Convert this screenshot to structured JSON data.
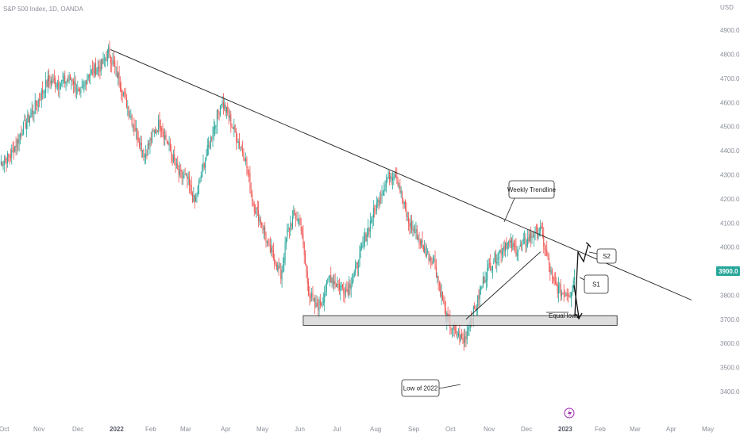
{
  "header": {
    "symbol": "S&P 500 Index, 1D, OANDA",
    "currency": "USD"
  },
  "current_price_label": "3900.0",
  "colors": {
    "up": "#26a69a",
    "down": "#ef5350",
    "price_badge": "#26a69a",
    "support_fill": "#d4d4d4",
    "line": "#1a1a1a",
    "axis_text": "#8a8e99",
    "icon": "#9c27b0"
  },
  "chart_data": {
    "type": "candlestick",
    "title": "S&P 500 Index, 1D, OANDA",
    "x_ticks": [
      "Oct",
      "Nov",
      "Dec",
      "2022",
      "Feb",
      "Mar",
      "Apr",
      "May",
      "Jun",
      "Jul",
      "Aug",
      "Sep",
      "Oct",
      "Nov",
      "Dec",
      "2023",
      "Feb",
      "Mar",
      "Apr",
      "May"
    ],
    "y_ticks": [
      "4900.0",
      "4800.0",
      "4700.0",
      "4600.0",
      "4500.0",
      "4400.0",
      "4300.0",
      "4200.0",
      "4100.0",
      "4000.0",
      "3800.0",
      "3700.0",
      "3600.0",
      "3500.0",
      "3400.0"
    ],
    "ylim": [
      3380,
      4960
    ],
    "ylabel": "USD",
    "price_keypoints": [
      [
        0,
        4350
      ],
      [
        10,
        4380
      ],
      [
        20,
        4480
      ],
      [
        35,
        4600
      ],
      [
        45,
        4690
      ],
      [
        55,
        4680
      ],
      [
        68,
        4700
      ],
      [
        75,
        4620
      ],
      [
        83,
        4720
      ],
      [
        95,
        4750
      ],
      [
        102,
        4810
      ],
      [
        110,
        4720
      ],
      [
        120,
        4580
      ],
      [
        128,
        4480
      ],
      [
        136,
        4380
      ],
      [
        142,
        4450
      ],
      [
        150,
        4520
      ],
      [
        160,
        4400
      ],
      [
        168,
        4300
      ],
      [
        176,
        4280
      ],
      [
        183,
        4180
      ],
      [
        190,
        4320
      ],
      [
        200,
        4480
      ],
      [
        208,
        4610
      ],
      [
        215,
        4540
      ],
      [
        222,
        4460
      ],
      [
        230,
        4380
      ],
      [
        238,
        4180
      ],
      [
        246,
        4100
      ],
      [
        252,
        4000
      ],
      [
        258,
        3950
      ],
      [
        264,
        3880
      ],
      [
        270,
        4060
      ],
      [
        276,
        4130
      ],
      [
        282,
        4110
      ],
      [
        290,
        3820
      ],
      [
        296,
        3750
      ],
      [
        302,
        3770
      ],
      [
        310,
        3880
      ],
      [
        318,
        3840
      ],
      [
        326,
        3820
      ],
      [
        334,
        3900
      ],
      [
        342,
        4020
      ],
      [
        350,
        4130
      ],
      [
        358,
        4220
      ],
      [
        366,
        4300
      ],
      [
        372,
        4310
      ],
      [
        378,
        4200
      ],
      [
        384,
        4100
      ],
      [
        392,
        4050
      ],
      [
        400,
        3980
      ],
      [
        408,
        3940
      ],
      [
        414,
        3820
      ],
      [
        420,
        3700
      ],
      [
        428,
        3640
      ],
      [
        436,
        3610
      ],
      [
        442,
        3700
      ],
      [
        448,
        3760
      ],
      [
        454,
        3860
      ],
      [
        460,
        3920
      ],
      [
        468,
        3970
      ],
      [
        476,
        4020
      ],
      [
        484,
        3990
      ],
      [
        490,
        4000
      ],
      [
        496,
        4030
      ],
      [
        502,
        4060
      ],
      [
        508,
        4070
      ],
      [
        514,
        3960
      ],
      [
        520,
        3850
      ],
      [
        528,
        3810
      ],
      [
        536,
        3810
      ],
      [
        540,
        3880
      ]
    ],
    "trendlines": [
      {
        "from": [
          104,
          4820
        ],
        "to": [
          650,
          3780
        ],
        "label": ""
      },
      {
        "from": [
          438,
          3700
        ],
        "to": [
          508,
          3980
        ],
        "label": ""
      }
    ],
    "support_zone": {
      "x_start": 285,
      "x_end": 580,
      "y_low": 3675,
      "y_high": 3715
    },
    "annotations": [
      {
        "text": "Weekly Trendline"
      },
      {
        "text": "S2"
      },
      {
        "text": "S1"
      },
      {
        "text": "Equal lows"
      },
      {
        "text": "Low of 2022"
      }
    ],
    "current_price": 3900.0,
    "grid": false
  }
}
